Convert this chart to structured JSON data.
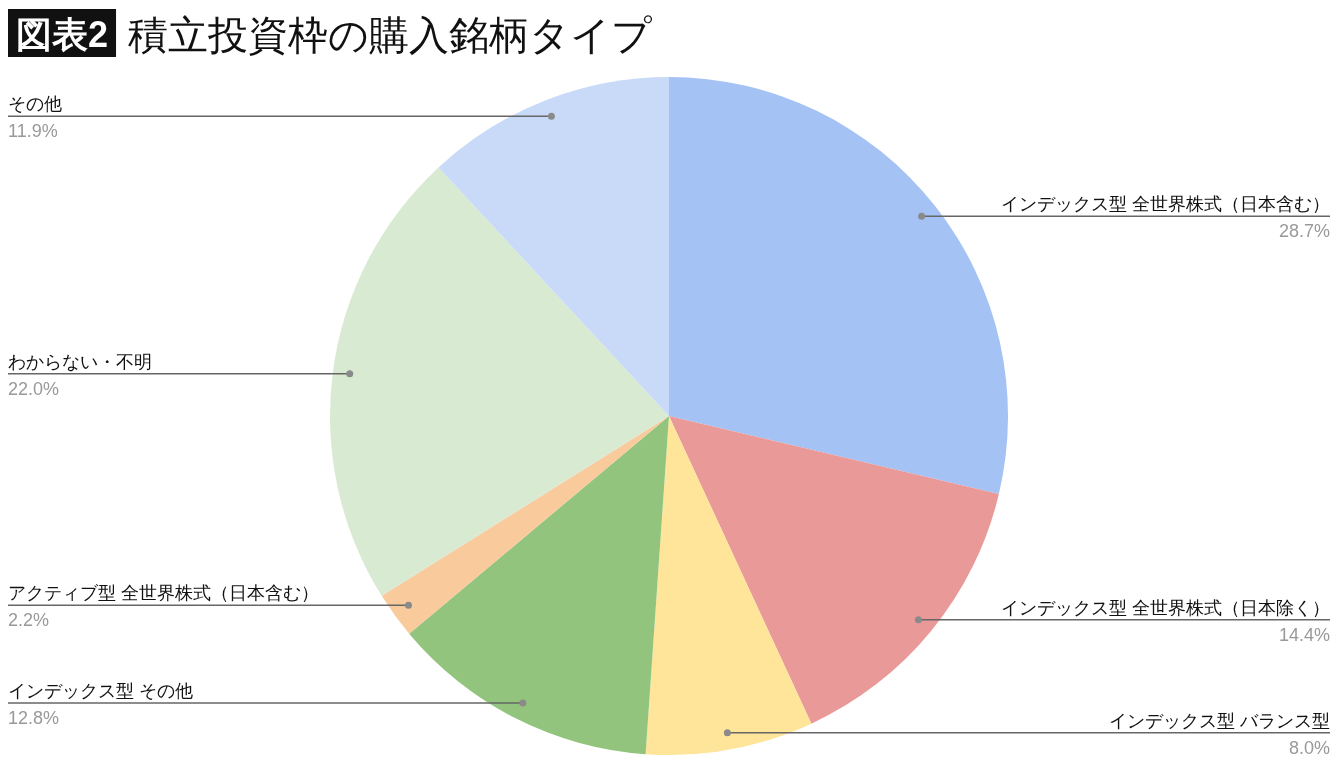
{
  "chart_data": {
    "type": "pie",
    "title": "積立投資枠の購入銘柄タイプ",
    "annotations": [
      "図表2"
    ],
    "categories": [
      "インデックス型 全世界株式（日本含む）",
      "インデックス型 全世界株式（日本除く）",
      "インデックス型 バランス型",
      "インデックス型 その他",
      "アクティブ型 全世界株式（日本含む）",
      "わからない・不明",
      "その他"
    ],
    "values": [
      28.7,
      14.4,
      8.0,
      12.8,
      2.2,
      22.0,
      11.9
    ],
    "value_labels": [
      "28.7%",
      "14.4%",
      "8.0%",
      "12.8%",
      "2.2%",
      "22.0%",
      "11.9%"
    ],
    "colors": [
      "#a4c2f4",
      "#ea9999",
      "#ffe599",
      "#93c47d",
      "#f9cb9c",
      "#d9ead3",
      "#c9daf8"
    ]
  }
}
